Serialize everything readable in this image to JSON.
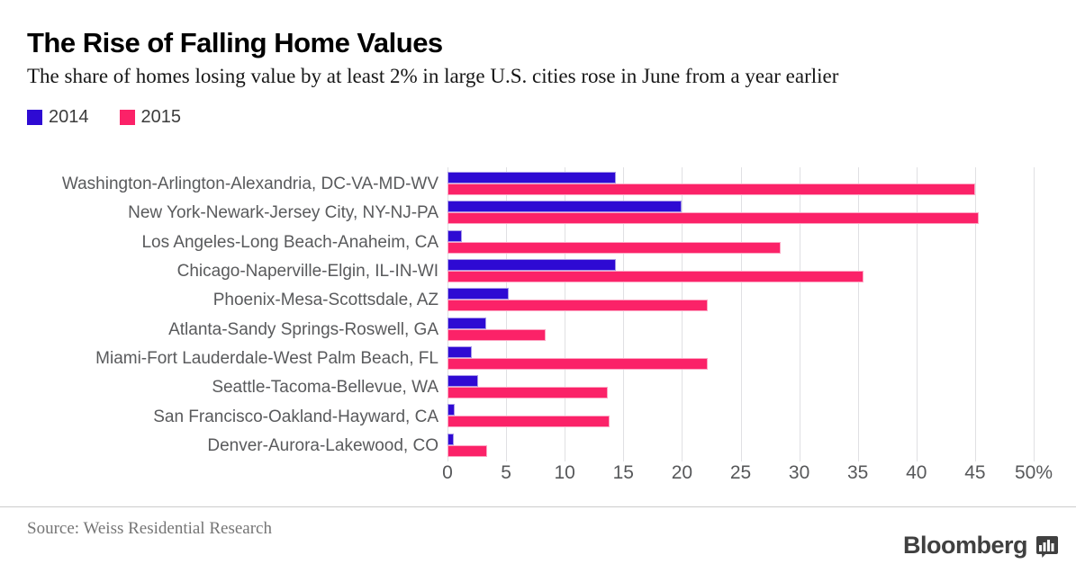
{
  "header": {
    "title": "The Rise of Falling Home Values",
    "subtitle": "The share of homes losing value by at least 2% in large U.S. cities rose in June from a year earlier"
  },
  "legend": {
    "items": [
      {
        "label": "2014",
        "color": "#2e0ad3"
      },
      {
        "label": "2015",
        "color": "#fb2268"
      }
    ]
  },
  "chart_data": {
    "type": "bar",
    "orientation": "horizontal",
    "unit": "%",
    "title": "The Rise of Falling Home Values",
    "xlabel": "",
    "ylabel": "",
    "xlim": [
      0,
      50
    ],
    "grid": true,
    "legend_position": "top-left",
    "categories": [
      "Washington-Arlington-Alexandria, DC-VA-MD-WV",
      "New York-Newark-Jersey City, NY-NJ-PA",
      "Los Angeles-Long Beach-Anaheim, CA",
      "Chicago-Naperville-Elgin, IL-IN-WI",
      "Phoenix-Mesa-Scottsdale, AZ",
      "Atlanta-Sandy Springs-Roswell, GA",
      "Miami-Fort Lauderdale-West Palm Beach, FL",
      "Seattle-Tacoma-Bellevue, WA",
      "San Francisco-Oakland-Hayward, CA",
      "Denver-Aurora-Lakewood, CO"
    ],
    "series": [
      {
        "name": "2014",
        "color": "#2e0ad3",
        "edge": "#a89ae8",
        "values": [
          14.4,
          20.0,
          1.2,
          14.4,
          5.2,
          3.3,
          2.1,
          2.6,
          0.6,
          0.5
        ]
      },
      {
        "name": "2015",
        "color": "#fb2268",
        "edge": "#fda6c3",
        "values": [
          45.0,
          45.3,
          28.4,
          35.5,
          22.2,
          8.4,
          22.2,
          13.7,
          13.8,
          3.4
        ]
      }
    ],
    "xticks": [
      0,
      5,
      10,
      15,
      20,
      25,
      30,
      35,
      40,
      45,
      50
    ],
    "xtick_labels": [
      "0",
      "5",
      "10",
      "15",
      "20",
      "25",
      "30",
      "35",
      "40",
      "45",
      "50%"
    ]
  },
  "footer": {
    "source": "Source: Weiss Residential Research",
    "brand": "Bloomberg",
    "brand_icon": "bar-chart-bubble"
  }
}
